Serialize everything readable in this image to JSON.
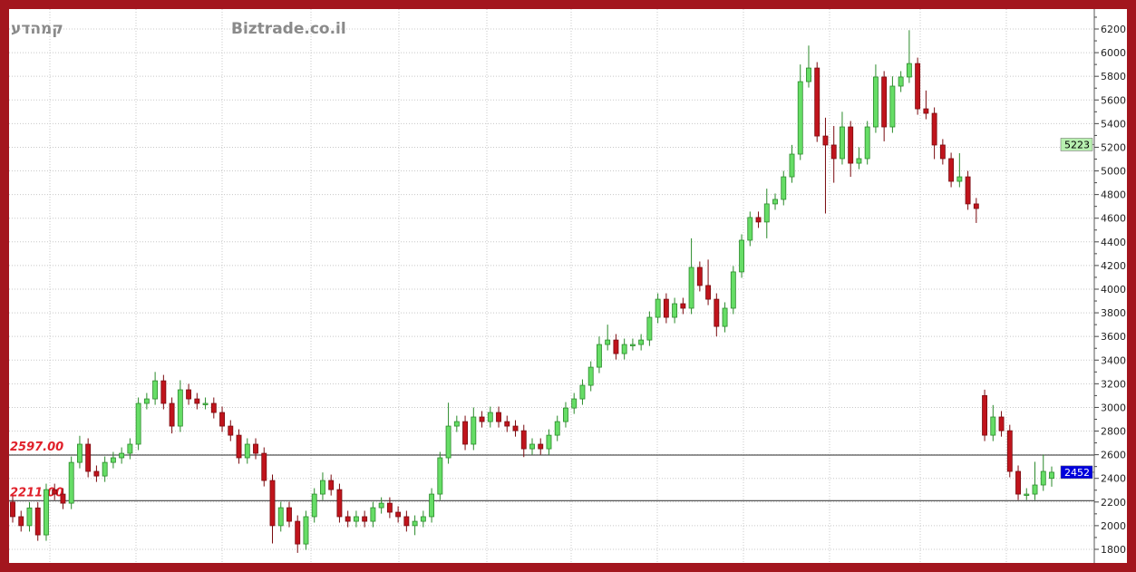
{
  "header": {
    "logo_hebrew": "קמהדע",
    "watermark": "Biztrade.co.il"
  },
  "chart_data": {
    "type": "candlestick",
    "title": "",
    "xlabel": "",
    "ylabel": "",
    "ylim": [
      1700,
      6300
    ],
    "yticks": [
      1800,
      2000,
      2200,
      2400,
      2600,
      2800,
      3000,
      3200,
      3400,
      3600,
      3800,
      4000,
      4200,
      4400,
      4600,
      4800,
      5000,
      5200,
      5400,
      5600,
      5800,
      6000,
      6200
    ],
    "grid": true,
    "colors": {
      "up": "#66dd66",
      "up_edge": "#2a8a2a",
      "down": "#c0141c",
      "down_edge": "#7a0a0f",
      "frame": "#a3161e"
    },
    "open": [
      2200,
      2076,
      2000,
      2150,
      1922,
      2305,
      2267,
      2190,
      2535,
      2689,
      2459,
      2420,
      2535,
      2574,
      2612,
      2689,
      3034,
      3072,
      3225,
      3034,
      2842,
      3149,
      3072,
      3034,
      3034,
      2957,
      2842,
      2765,
      2574,
      2689,
      2612,
      2382,
      2000,
      2152,
      2037,
      1845,
      2076,
      2267,
      2382,
      2305,
      2076,
      2037,
      2076,
      2037,
      2152,
      2190,
      2114,
      2076,
      2000,
      2037,
      2076,
      2267,
      2574,
      2842,
      2880,
      2689,
      2919,
      2880,
      2957,
      2880,
      2842,
      2803,
      2650,
      2689,
      2650,
      2765,
      2880,
      2995,
      3072,
      3187,
      3340,
      3532,
      3570,
      3455,
      3532,
      3532,
      3570,
      3762,
      3915,
      3762,
      3877,
      3839,
      4184,
      4031,
      3915,
      3685,
      3839,
      4146,
      4414,
      4606,
      4568,
      4721,
      4759,
      4950,
      5142,
      5755,
      5870,
      5295,
      5219,
      5104,
      5372,
      5065,
      5104,
      5372,
      5794,
      5372,
      5717,
      5794,
      5908,
      5525,
      5487,
      5219,
      5104,
      4912,
      4950,
      4721,
      3100,
      2765,
      2919,
      2803,
      2459,
      2267,
      2267,
      2344,
      2400
    ],
    "high": [
      2250,
      2126,
      2200,
      2200,
      2355,
      2355,
      2317,
      2585,
      2760,
      2739,
      2509,
      2585,
      2624,
      2662,
      2739,
      3084,
      3122,
      3300,
      3275,
      3084,
      3230,
      3199,
      3122,
      3084,
      3084,
      3007,
      2892,
      2815,
      2739,
      2739,
      2662,
      2432,
      2202,
      2202,
      2087,
      2126,
      2317,
      2450,
      2432,
      2355,
      2126,
      2126,
      2126,
      2202,
      2240,
      2240,
      2164,
      2126,
      2087,
      2126,
      2317,
      2624,
      3040,
      2930,
      2930,
      3000,
      2969,
      3007,
      3007,
      2930,
      2892,
      2853,
      2739,
      2739,
      2815,
      2930,
      3045,
      3122,
      3237,
      3390,
      3600,
      3700,
      3620,
      3582,
      3582,
      3620,
      3812,
      3965,
      3965,
      3927,
      3927,
      4430,
      4234,
      4250,
      3965,
      3889,
      4196,
      4464,
      4656,
      4656,
      4850,
      4809,
      5000,
      5220,
      5900,
      6060,
      5920,
      5450,
      5380,
      5500,
      5422,
      5200,
      5422,
      5900,
      5844,
      5800,
      5844,
      6190,
      5958,
      5680,
      5537,
      5269,
      5154,
      5150,
      5000,
      4771,
      3150,
      3020,
      2969,
      2853,
      2509,
      2317,
      2540,
      2600,
      2500
    ],
    "low": [
      2026,
      1950,
      1950,
      1872,
      1872,
      2217,
      2140,
      2140,
      2485,
      2409,
      2370,
      2370,
      2485,
      2524,
      2562,
      2639,
      2984,
      3022,
      2984,
      2780,
      2792,
      3022,
      2984,
      2984,
      2907,
      2792,
      2715,
      2524,
      2524,
      2562,
      2332,
      1850,
      1950,
      1987,
      1770,
      1795,
      2026,
      2217,
      2255,
      2026,
      1987,
      1987,
      1987,
      1987,
      2102,
      2064,
      2026,
      1950,
      1920,
      1987,
      2026,
      2217,
      2524,
      2792,
      2639,
      2639,
      2830,
      2830,
      2830,
      2792,
      2753,
      2580,
      2600,
      2600,
      2600,
      2715,
      2830,
      2945,
      3022,
      3137,
      3290,
      3482,
      3405,
      3405,
      3482,
      3482,
      3520,
      3712,
      3712,
      3712,
      3789,
      3789,
      3981,
      3865,
      3600,
      3635,
      3789,
      4096,
      4364,
      4518,
      4430,
      4671,
      4709,
      4900,
      5092,
      5705,
      5245,
      4640,
      4900,
      5054,
      4950,
      5015,
      5054,
      5322,
      5250,
      5322,
      5667,
      5744,
      5475,
      5437,
      5100,
      5054,
      4862,
      4862,
      4671,
      4560,
      2715,
      2715,
      2753,
      2409,
      2217,
      2217,
      2217,
      2294,
      2330
    ],
    "close": [
      2076,
      2000,
      2150,
      1922,
      2305,
      2267,
      2190,
      2535,
      2689,
      2459,
      2420,
      2535,
      2574,
      2612,
      2689,
      3034,
      3072,
      3225,
      3034,
      2842,
      3149,
      3072,
      3034,
      3034,
      2957,
      2842,
      2765,
      2574,
      2689,
      2612,
      2382,
      2000,
      2152,
      2037,
      1845,
      2076,
      2267,
      2382,
      2305,
      2076,
      2037,
      2076,
      2037,
      2152,
      2190,
      2114,
      2076,
      2000,
      2037,
      2076,
      2267,
      2574,
      2842,
      2880,
      2689,
      2919,
      2880,
      2957,
      2880,
      2842,
      2803,
      2650,
      2689,
      2650,
      2765,
      2880,
      2995,
      3072,
      3187,
      3340,
      3532,
      3570,
      3455,
      3532,
      3532,
      3570,
      3762,
      3915,
      3762,
      3877,
      3839,
      4184,
      4031,
      3915,
      3685,
      3839,
      4146,
      4414,
      4606,
      4568,
      4721,
      4759,
      4950,
      5142,
      5755,
      5870,
      5295,
      5219,
      5104,
      5372,
      5065,
      5104,
      5372,
      5794,
      5372,
      5717,
      5794,
      5908,
      5525,
      5487,
      5219,
      5104,
      4912,
      4950,
      4721,
      4682,
      2765,
      2919,
      2803,
      2459,
      2267,
      2267,
      2344,
      2459,
      2452
    ],
    "levels": [
      {
        "value": 2597,
        "label": "2597.00"
      },
      {
        "value": 2211,
        "label": "2211.00"
      }
    ],
    "price_markers": [
      {
        "value": 5223,
        "label": "5223",
        "bg": "#b8f0b0",
        "fg": "#000000"
      },
      {
        "value": 2452,
        "label": "2452",
        "bg": "#0000dd",
        "fg": "#ffffff"
      }
    ]
  }
}
